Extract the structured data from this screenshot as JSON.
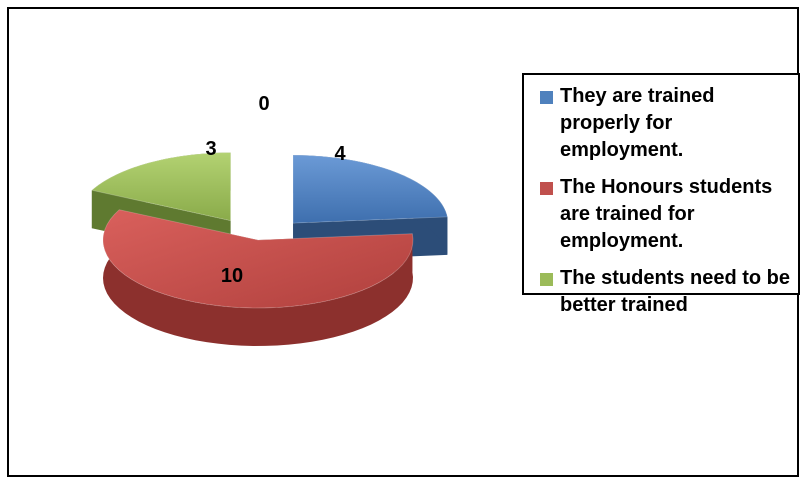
{
  "chart_data": {
    "type": "pie",
    "categories": [
      "They are trained properly for employment.",
      "The Honours students are trained for employment.",
      "The students need to be better trained",
      ""
    ],
    "values": [
      4,
      10,
      3,
      0
    ],
    "data_labels": [
      "4",
      "10",
      "3",
      "0"
    ],
    "colors": [
      "#4f81bd",
      "#c0504d",
      "#9bbb59",
      "#8064a2"
    ],
    "title": "",
    "legend_placement": "right",
    "three_d": true,
    "exploded": true
  },
  "legend": {
    "items": [
      {
        "label": "They are trained properly for employment.",
        "color": "#4f81bd"
      },
      {
        "label": "The Honours students are trained for employment.",
        "color": "#c0504d"
      },
      {
        "label": "The students need to be better trained",
        "color": "#9bbb59"
      }
    ]
  }
}
